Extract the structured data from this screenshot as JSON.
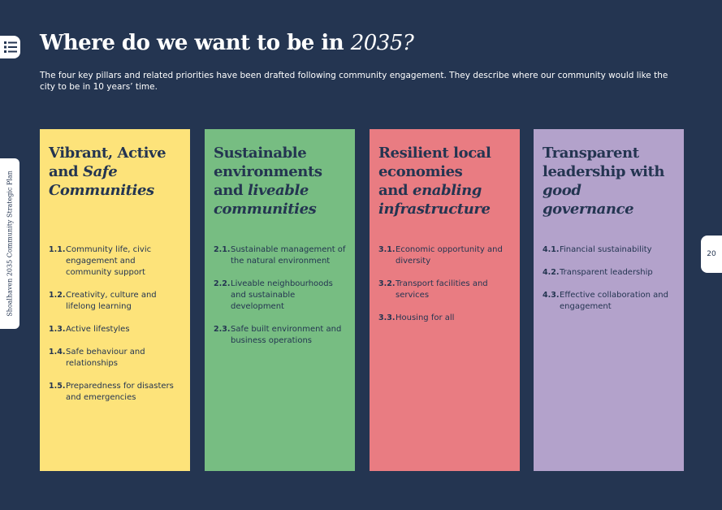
{
  "page": {
    "title_prefix": "Where do we want to be in ",
    "title_year": "2035?",
    "intro": "The four key pillars and related priorities have been drafted following community engagement. They describe where our community would like the city to be in 10 years’ time.",
    "side_label": "Shoalhaven 2035 Community Strategic Plan",
    "page_number": "20",
    "menu_icon": "list-menu-icon"
  },
  "colors": {
    "background": "#243551",
    "pillar1": "#fde37a",
    "pillar2": "#77bd82",
    "pillar3": "#e97c82",
    "pillar4": "#b3a2cb"
  },
  "pillars": [
    {
      "t1": "Vibrant, Active",
      "t2": "and ",
      "t3": "Safe",
      "t4": "Communities",
      "t5": "",
      "items": [
        {
          "num": "1.1.",
          "text": "Community life, civic engagement and community support"
        },
        {
          "num": "1.2.",
          "text": "Creativity, culture and lifelong learning"
        },
        {
          "num": "1.3.",
          "text": "Active lifestyles"
        },
        {
          "num": "1.4.",
          "text": "Safe behaviour and relationships"
        },
        {
          "num": "1.5.",
          "text": "Preparedness for disasters and emergencies"
        }
      ]
    },
    {
      "t1": "Sustainable",
      "t2": "environments",
      "t3": "and ",
      "t4": "liveable",
      "t5": "communities",
      "items": [
        {
          "num": "2.1.",
          "text": "Sustainable management of the natural environment"
        },
        {
          "num": "2.2.",
          "text": "Liveable neighbourhoods and sustainable development"
        },
        {
          "num": "2.3.",
          "text": "Safe built environment and business operations"
        }
      ]
    },
    {
      "t1": "Resilient local",
      "t2": "economies",
      "t3": "and ",
      "t4": "enabling",
      "t5": "infrastructure",
      "items": [
        {
          "num": "3.1.",
          "text": "Economic opportunity and diversity"
        },
        {
          "num": "3.2.",
          "text": "Transport facilities and services"
        },
        {
          "num": "3.3.",
          "text": "Housing for all"
        }
      ]
    },
    {
      "t1": "Transparent",
      "t2": "leadership with",
      "t3": "good governance",
      "t4": "",
      "t5": "",
      "items": [
        {
          "num": "4.1.",
          "text": "Financial sustainability"
        },
        {
          "num": "4.2.",
          "text": "Transparent leadership"
        },
        {
          "num": "4.3.",
          "text": "Effective collaboration and engagement"
        }
      ]
    }
  ]
}
